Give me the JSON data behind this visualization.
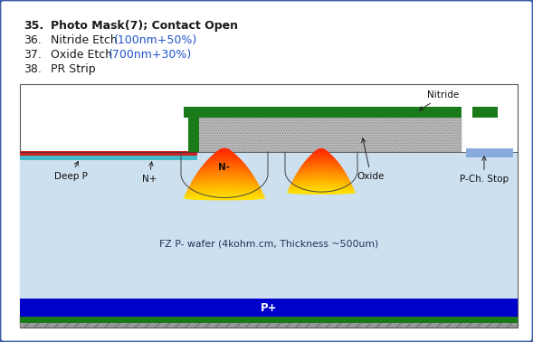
{
  "title_35": "35.",
  "title_35_text": "Photo Mask(7); Contact Open",
  "line_36_num": "36.",
  "line_36_text": "Nitride Etch ",
  "line_36_colored": "(100nm+50%)",
  "line_37_num": "37.",
  "line_37_text": "Oxide Etch ",
  "line_37_colored": "(700nm+30%)",
  "line_38_num": "38.",
  "line_38_text": "PR Strip",
  "bg_color": "#ffffff",
  "border_color": "#3b5ea6",
  "text_color_black": "#1a1a1a",
  "text_color_blue": "#2255cc",
  "wafer_color": "#cce0f0",
  "p_plus_color": "#0000cc",
  "green_color": "#1a7a1a",
  "oxide_hatch_color": "#aaaaaa",
  "red_layer_color": "#cc2222",
  "cyan_layer_color": "#44bbcc",
  "pstop_color": "#88aadd",
  "wafer_label": "FZ P- wafer (4kohm.cm, Thickness ~500um)",
  "p_plus_label": "P+",
  "nitride_label": "Nitride",
  "oxide_label": "Oxide",
  "deep_p_label": "Deep P",
  "n_plus_label": "N+",
  "n_minus_label": "N-",
  "pch_stop_label": "P-Ch. Stop",
  "fig_w": 5.89,
  "fig_h": 3.78,
  "dpi": 100
}
